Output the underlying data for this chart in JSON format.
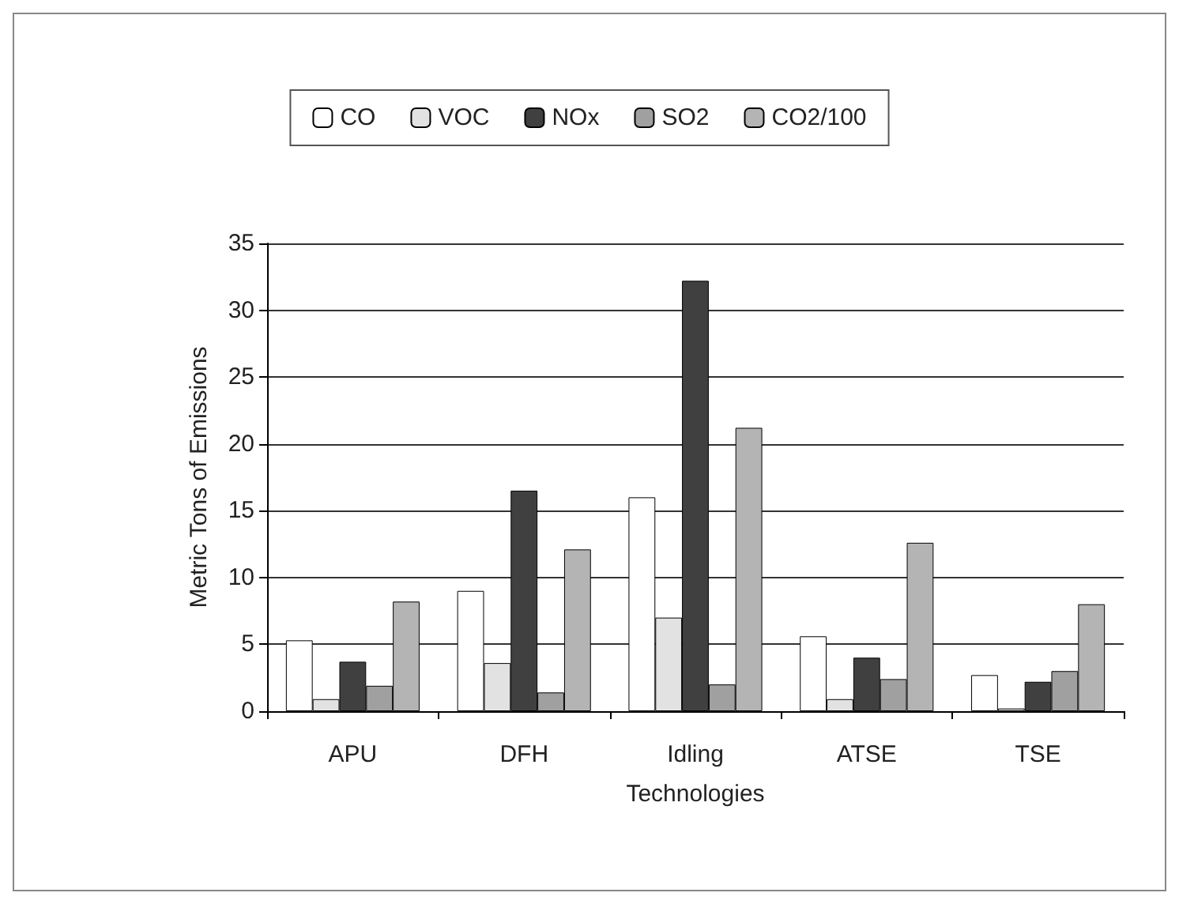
{
  "chart_data": {
    "type": "bar",
    "xlabel": "Technologies",
    "ylabel": "Metric Tons of Emissions",
    "categories": [
      "APU",
      "DFH",
      "Idling",
      "ATSE",
      "TSE"
    ],
    "series": [
      {
        "name": "CO",
        "color": "#ffffff",
        "values": [
          5.3,
          9,
          16,
          5.6,
          2.7
        ]
      },
      {
        "name": "VOC",
        "color": "#e2e2e2",
        "values": [
          0.9,
          3.6,
          7,
          0.9,
          0.2
        ]
      },
      {
        "name": "NOx",
        "color": "#404040",
        "values": [
          3.7,
          16.5,
          32.2,
          4,
          2.2
        ]
      },
      {
        "name": "SO2",
        "color": "#a0a0a0",
        "values": [
          1.9,
          1.4,
          2,
          2.4,
          3
        ]
      },
      {
        "name": "CO2/100",
        "color": "#b4b4b4",
        "values": [
          8.2,
          12.1,
          21.2,
          12.6,
          8
        ]
      }
    ],
    "ylim": [
      0,
      35
    ],
    "yticks": [
      0,
      5,
      10,
      15,
      20,
      25,
      30,
      35
    ],
    "grid": "y",
    "legend": "top"
  }
}
